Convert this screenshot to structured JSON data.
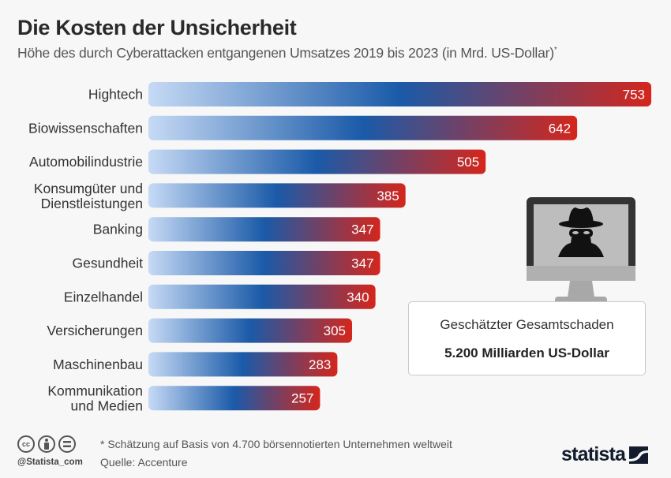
{
  "header": {
    "title": "Die Kosten der Unsicherheit",
    "subtitle": "Höhe des durch Cyberattacken entgangenen Umsatzes 2019 bis 2023 (in Mrd. US-Dollar)",
    "subtitle_mark": "*"
  },
  "chart_data": {
    "type": "bar",
    "orientation": "horizontal",
    "title": "Die Kosten der Unsicherheit",
    "subtitle": "Höhe des durch Cyberattacken entgangenen Umsatzes 2019 bis 2023 (in Mrd. US-Dollar)*",
    "xlabel": "",
    "ylabel": "",
    "xlim": [
      0,
      753
    ],
    "grid": false,
    "categories": [
      [
        "Hightech"
      ],
      [
        "Biowissenschaften"
      ],
      [
        "Automobilindustrie"
      ],
      [
        "Konsumgüter und",
        "Dienstleistungen"
      ],
      [
        "Banking"
      ],
      [
        "Gesundheit"
      ],
      [
        "Einzelhandel"
      ],
      [
        "Versicherungen"
      ],
      [
        "Maschinenbau"
      ],
      [
        "Kommunikation",
        "und Medien"
      ]
    ],
    "values": [
      753,
      642,
      505,
      385,
      347,
      347,
      340,
      305,
      283,
      257
    ],
    "colors": {
      "gradient_start": "#c6daf5",
      "gradient_mid": "#1a5aa8",
      "gradient_end": "#d4261c"
    }
  },
  "info_box": {
    "label": "Geschätzter Gesamtschaden",
    "value": "5.200 Milliarden US-Dollar"
  },
  "illustration": {
    "icon": "hacker-on-monitor-icon"
  },
  "footer": {
    "license_icons": [
      "cc-icon",
      "by-icon",
      "nd-icon"
    ],
    "cc_label": "cc",
    "handle": "@Statista_com",
    "note": "* Schätzung auf Basis von 4.700 börsennotierten Unternehmen weltweit",
    "source": "Quelle: Accenture",
    "brand": "statista"
  }
}
